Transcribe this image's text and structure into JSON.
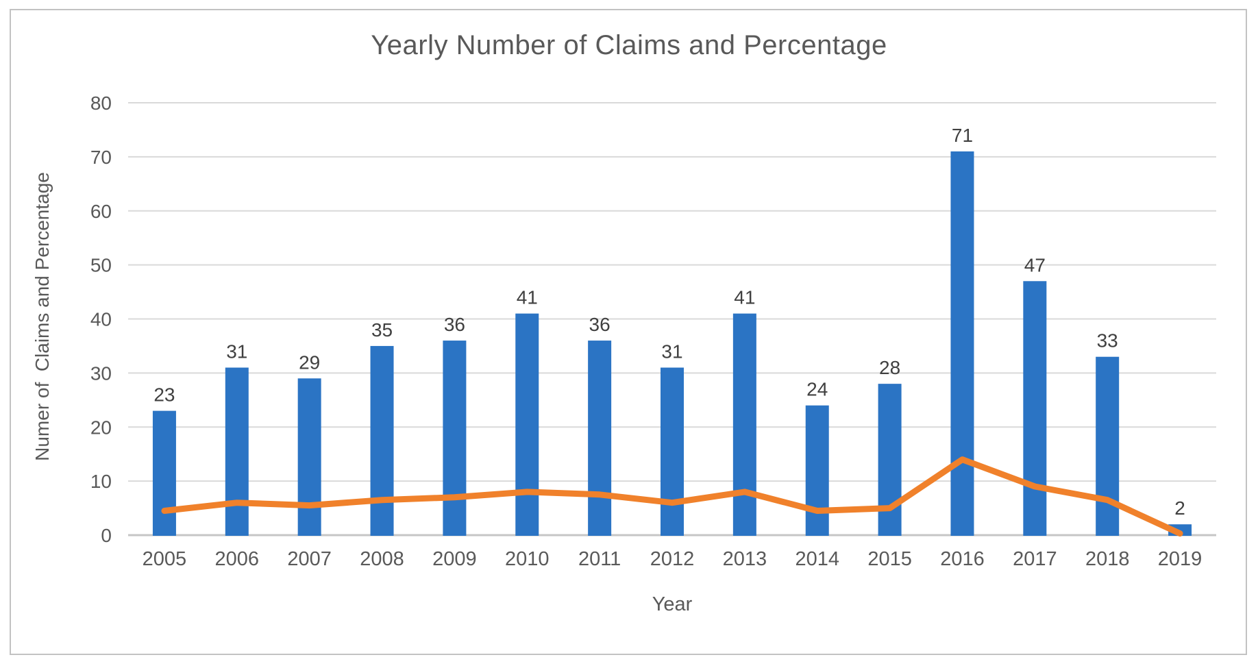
{
  "chart_data": {
    "type": "bar+line",
    "title": "Yearly Number of Claims and Percentage",
    "xlabel": "Year",
    "ylabel": "Numer of  Claims and Percentage",
    "categories": [
      "2005",
      "2006",
      "2007",
      "2008",
      "2009",
      "2010",
      "2011",
      "2012",
      "2013",
      "2014",
      "2015",
      "2016",
      "2017",
      "2018",
      "2019"
    ],
    "series": [
      {
        "name": "Number of Claims",
        "type": "bar",
        "values": [
          23,
          31,
          29,
          35,
          36,
          41,
          36,
          31,
          41,
          24,
          28,
          71,
          47,
          33,
          2
        ],
        "data_labels": [
          "23",
          "31",
          "29",
          "35",
          "36",
          "41",
          "36",
          "31",
          "41",
          "24",
          "28",
          "71",
          "47",
          "33",
          "2"
        ]
      },
      {
        "name": "Percentage",
        "type": "line",
        "values": [
          4.5,
          6,
          5.5,
          6.5,
          7,
          8,
          7.5,
          6,
          8,
          4.5,
          5,
          14,
          9,
          6.5,
          0.3
        ]
      }
    ],
    "ylim": [
      0,
      80
    ],
    "yticks": [
      0,
      10,
      20,
      30,
      40,
      50,
      60,
      70,
      80
    ],
    "grid": "horizontal",
    "legend": "none",
    "colors": {
      "bar": "#2b74c4",
      "line": "#f0812b",
      "title_text": "#595959",
      "axis_text": "#595959",
      "data_label_text": "#404040",
      "gridline": "#d9d9d9",
      "axis_line": "#c6c6c6",
      "frame_border": "#c2c2c2"
    }
  }
}
